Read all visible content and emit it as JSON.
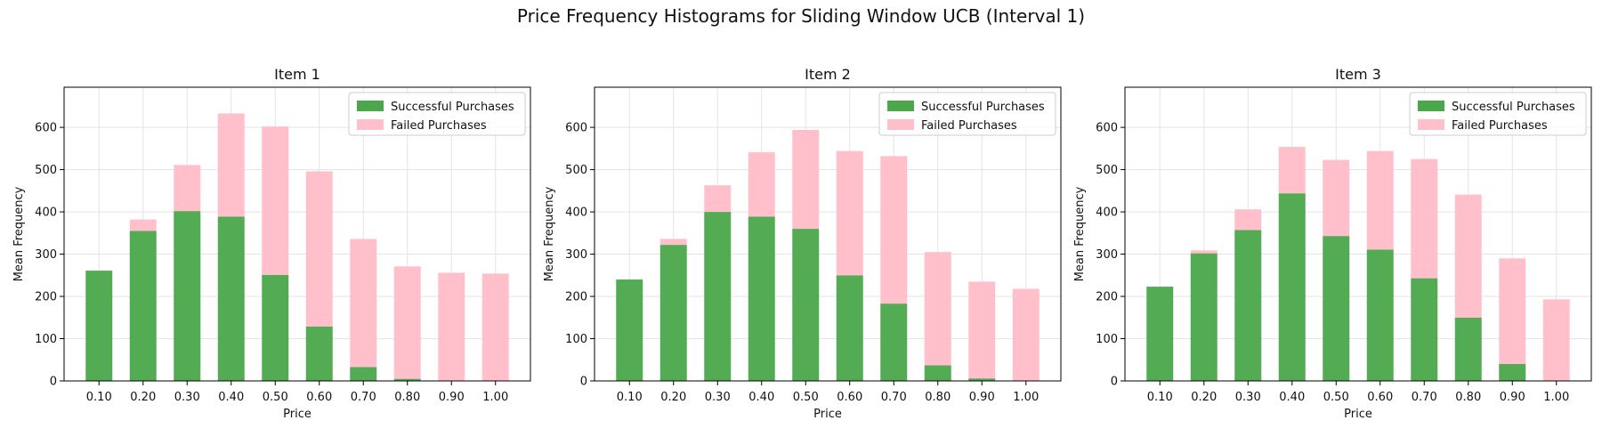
{
  "figure": {
    "suptitle": "Price Frequency Histograms for Sliding Window UCB (Interval 1)"
  },
  "colors": {
    "success": "#4aa84a",
    "failed": "#ffc0cb",
    "grid": "#e3e3e3",
    "axis": "#000000"
  },
  "chart_data": [
    {
      "type": "bar",
      "stacked": true,
      "title": "Item 1",
      "xlabel": "Price",
      "ylabel": "Mean Frequency",
      "categories": [
        "0.10",
        "0.20",
        "0.30",
        "0.40",
        "0.50",
        "0.60",
        "0.70",
        "0.80",
        "0.90",
        "1.00"
      ],
      "ylim": [
        0,
        695
      ],
      "yticks": [
        0,
        100,
        200,
        300,
        400,
        500,
        600
      ],
      "grid": true,
      "legend_position": "top-right",
      "series": [
        {
          "name": "Successful Purchases",
          "color": "#4aa84a",
          "values": [
            261,
            355,
            402,
            389,
            251,
            129,
            33,
            5,
            0,
            0
          ]
        },
        {
          "name": "Failed Purchases",
          "color": "#ffc0cb",
          "values": [
            0,
            27,
            109,
            244,
            351,
            367,
            303,
            266,
            256,
            254
          ]
        }
      ]
    },
    {
      "type": "bar",
      "stacked": true,
      "title": "Item 2",
      "xlabel": "Price",
      "ylabel": "Mean Frequency",
      "categories": [
        "0.10",
        "0.20",
        "0.30",
        "0.40",
        "0.50",
        "0.60",
        "0.70",
        "0.80",
        "0.90",
        "1.00"
      ],
      "ylim": [
        0,
        695
      ],
      "yticks": [
        0,
        100,
        200,
        300,
        400,
        500,
        600
      ],
      "grid": true,
      "legend_position": "top-right",
      "series": [
        {
          "name": "Successful Purchases",
          "color": "#4aa84a",
          "values": [
            240,
            322,
            400,
            389,
            360,
            250,
            183,
            37,
            6,
            0
          ]
        },
        {
          "name": "Failed Purchases",
          "color": "#ffc0cb",
          "values": [
            0,
            14,
            63,
            152,
            234,
            294,
            349,
            268,
            229,
            218
          ]
        }
      ]
    },
    {
      "type": "bar",
      "stacked": true,
      "title": "Item 3",
      "xlabel": "Price",
      "ylabel": "Mean Frequency",
      "categories": [
        "0.10",
        "0.20",
        "0.30",
        "0.40",
        "0.50",
        "0.60",
        "0.70",
        "0.80",
        "0.90",
        "1.00"
      ],
      "ylim": [
        0,
        695
      ],
      "yticks": [
        0,
        100,
        200,
        300,
        400,
        500,
        600
      ],
      "grid": true,
      "legend_position": "top-right",
      "series": [
        {
          "name": "Successful Purchases",
          "color": "#4aa84a",
          "values": [
            223,
            302,
            357,
            444,
            343,
            311,
            243,
            150,
            40,
            0
          ]
        },
        {
          "name": "Failed Purchases",
          "color": "#ffc0cb",
          "values": [
            0,
            7,
            49,
            110,
            180,
            233,
            282,
            291,
            250,
            193
          ]
        }
      ]
    }
  ]
}
